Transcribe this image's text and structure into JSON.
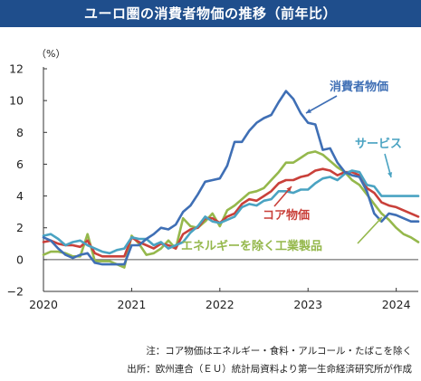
{
  "title": "ユーロ圏の消費者物価の推移（前年比）",
  "notes": {
    "note1": "注：コア物価はエネルギー・食料・アルコール・たばこを除く",
    "note2": "出所：欧州連合（ＥＵ）統計局資料より第一生命経済研究所が作成"
  },
  "chart_data": {
    "type": "line",
    "unit_label": "（%）",
    "ylim": [
      -2,
      12
    ],
    "yticks": [
      "12",
      "10",
      "8",
      "6",
      "4",
      "2",
      "0",
      "−2"
    ],
    "ytick_values": [
      12,
      10,
      8,
      6,
      4,
      2,
      0,
      -2
    ],
    "xlim": [
      2020.0,
      2024.25
    ],
    "xticks": [
      "2020",
      "2021",
      "2022",
      "2023",
      "2024"
    ],
    "xtick_values": [
      2020,
      2021,
      2022,
      2023,
      2024
    ],
    "x": [
      2020.0,
      2020.083,
      2020.167,
      2020.25,
      2020.333,
      2020.417,
      2020.5,
      2020.583,
      2020.667,
      2020.75,
      2020.833,
      2020.917,
      2021.0,
      2021.083,
      2021.167,
      2021.25,
      2021.333,
      2021.417,
      2021.5,
      2021.583,
      2021.667,
      2021.75,
      2021.833,
      2021.917,
      2022.0,
      2022.083,
      2022.167,
      2022.25,
      2022.333,
      2022.417,
      2022.5,
      2022.583,
      2022.667,
      2022.75,
      2022.833,
      2022.917,
      2023.0,
      2023.083,
      2023.167,
      2023.25,
      2023.333,
      2023.417,
      2023.5,
      2023.583,
      2023.667,
      2023.75,
      2023.833,
      2023.917,
      2024.0,
      2024.083,
      2024.167,
      2024.25
    ],
    "series": [
      {
        "name": "消費者物価",
        "color": "#3f6fb5",
        "values": [
          1.4,
          1.2,
          0.7,
          0.3,
          0.1,
          0.3,
          0.4,
          -0.2,
          -0.3,
          -0.3,
          -0.3,
          -0.3,
          0.9,
          0.9,
          1.3,
          1.6,
          2.0,
          1.9,
          2.2,
          3.0,
          3.4,
          4.1,
          4.9,
          5.0,
          5.1,
          5.9,
          7.4,
          7.4,
          8.1,
          8.6,
          8.9,
          9.1,
          9.9,
          10.6,
          10.1,
          9.2,
          8.6,
          8.5,
          6.9,
          7.0,
          6.1,
          5.5,
          5.3,
          5.2,
          4.3,
          2.9,
          2.4,
          2.9,
          2.8,
          2.6,
          2.4,
          2.4
        ]
      },
      {
        "name": "サービス",
        "color": "#4aa3c2",
        "values": [
          1.5,
          1.6,
          1.3,
          0.9,
          1.1,
          1.2,
          0.9,
          0.7,
          0.5,
          0.4,
          0.6,
          0.7,
          1.4,
          1.3,
          1.3,
          0.9,
          1.1,
          0.7,
          0.9,
          1.1,
          1.7,
          2.1,
          2.7,
          2.4,
          2.3,
          2.5,
          2.7,
          3.3,
          3.5,
          3.4,
          3.7,
          3.8,
          4.3,
          4.3,
          4.2,
          4.4,
          4.4,
          4.8,
          5.1,
          5.2,
          5.0,
          5.4,
          5.6,
          5.5,
          4.7,
          4.6,
          4.0,
          4.0,
          4.0,
          4.0,
          4.0,
          4.0
        ]
      },
      {
        "name": "コア物価",
        "color": "#c9403a",
        "values": [
          1.1,
          1.2,
          1.0,
          0.9,
          0.9,
          0.8,
          1.2,
          0.4,
          0.2,
          0.2,
          0.2,
          0.2,
          1.4,
          1.1,
          0.9,
          0.7,
          1.0,
          0.9,
          0.7,
          1.6,
          1.9,
          2.0,
          2.6,
          2.6,
          2.3,
          2.7,
          2.9,
          3.5,
          3.8,
          3.7,
          4.0,
          4.3,
          4.8,
          5.0,
          5.0,
          5.2,
          5.3,
          5.6,
          5.7,
          5.6,
          5.3,
          5.5,
          5.5,
          5.3,
          4.5,
          4.2,
          3.6,
          3.4,
          3.3,
          3.1,
          2.9,
          2.7
        ]
      },
      {
        "name": "エネルギーを除く工業製品",
        "color": "#95b84c",
        "values": [
          0.3,
          0.5,
          0.5,
          0.4,
          0.2,
          0.2,
          1.6,
          -0.1,
          -0.1,
          -0.1,
          -0.3,
          -0.5,
          1.5,
          1.0,
          0.3,
          0.4,
          0.7,
          1.2,
          0.7,
          2.6,
          2.1,
          2.0,
          2.4,
          2.9,
          2.1,
          3.1,
          3.4,
          3.8,
          4.2,
          4.3,
          4.5,
          5.0,
          5.5,
          6.1,
          6.1,
          6.4,
          6.7,
          6.8,
          6.6,
          6.2,
          5.8,
          5.5,
          5.0,
          4.7,
          4.1,
          3.5,
          2.9,
          2.5,
          2.0,
          1.6,
          1.4,
          1.1
        ]
      }
    ],
    "labels": [
      {
        "series": 0,
        "text": "消費者物価"
      },
      {
        "series": 1,
        "text": "サービス"
      },
      {
        "series": 2,
        "text": "コア物価"
      },
      {
        "series": 3,
        "text": "エネルギーを除く工業製品"
      }
    ]
  }
}
